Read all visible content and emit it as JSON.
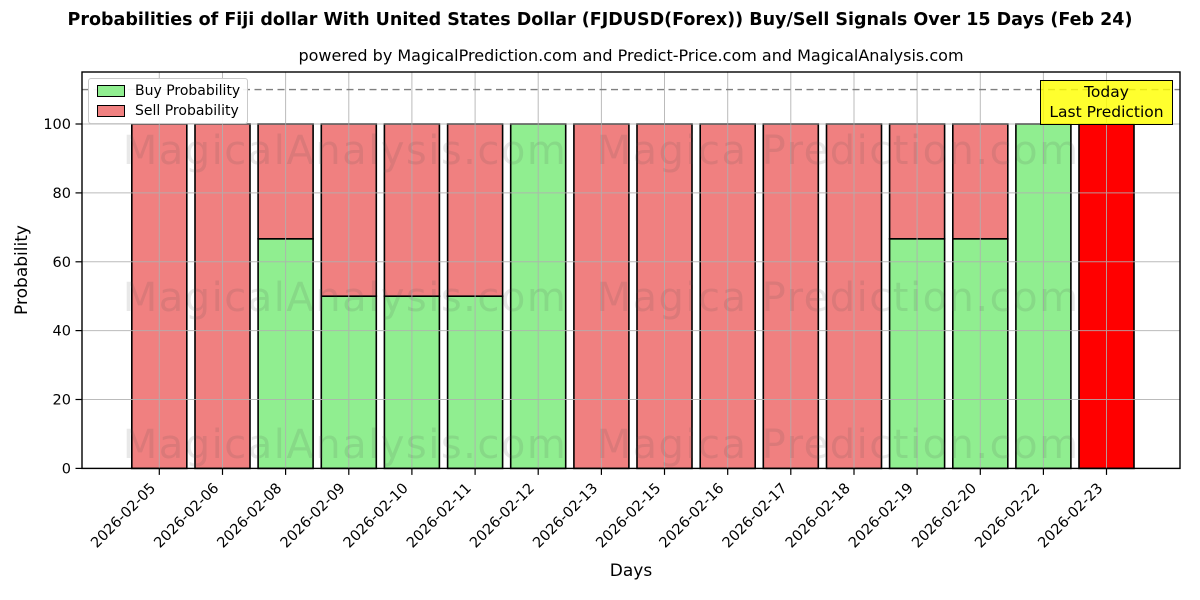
{
  "title": "Probabilities of Fiji dollar With United States Dollar (FJDUSD(Forex)) Buy/Sell Signals Over 15 Days (Feb 24)",
  "subtitle": "powered by MagicalPrediction.com and Predict-Price.com and MagicalAnalysis.com",
  "watermark": {
    "left_text": "MagicalAnalysis.com",
    "right_text": "Magica Prediction.com"
  },
  "annotation": {
    "line1": "Today",
    "line2": "Last Prediction",
    "bg_color": "#ffff00"
  },
  "legend": {
    "items": [
      {
        "label": "Buy Probability",
        "color": "#90ee90"
      },
      {
        "label": "Sell Probability",
        "color": "#f08080"
      }
    ]
  },
  "chart_data": {
    "type": "bar",
    "stacked": true,
    "title": "Probabilities of Fiji dollar With United States Dollar (FJDUSD(Forex)) Buy/Sell Signals Over 15 Days (Feb 24)",
    "xlabel": "Days",
    "ylabel": "Probability",
    "ylim": [
      0,
      116
    ],
    "yticks": [
      0,
      20,
      40,
      60,
      80,
      100
    ],
    "grid": true,
    "legend_position": "upper left",
    "dashed_threshold": 110,
    "categories": [
      "2026-02-05",
      "2026-02-06",
      "2026-02-08",
      "2026-02-09",
      "2026-02-10",
      "2026-02-11",
      "2026-02-12",
      "2026-02-13",
      "2026-02-15",
      "2026-02-16",
      "2026-02-17",
      "2026-02-18",
      "2026-02-19",
      "2026-02-20",
      "2026-02-22",
      "2026-02-23"
    ],
    "series": [
      {
        "name": "Buy Probability",
        "color": "#90ee90",
        "values": [
          0,
          0,
          66.67,
          50,
          50,
          50,
          100,
          0,
          0,
          0,
          0,
          0,
          66.67,
          66.67,
          100,
          0
        ]
      },
      {
        "name": "Sell Probability",
        "color": "#f08080",
        "values": [
          100,
          100,
          33.33,
          50,
          50,
          50,
          0,
          100,
          100,
          100,
          100,
          100,
          33.33,
          33.33,
          0,
          100
        ]
      }
    ],
    "highlight_bars": [
      {
        "index": 15,
        "category": "2026-02-23",
        "color": "#ff0000"
      }
    ]
  }
}
